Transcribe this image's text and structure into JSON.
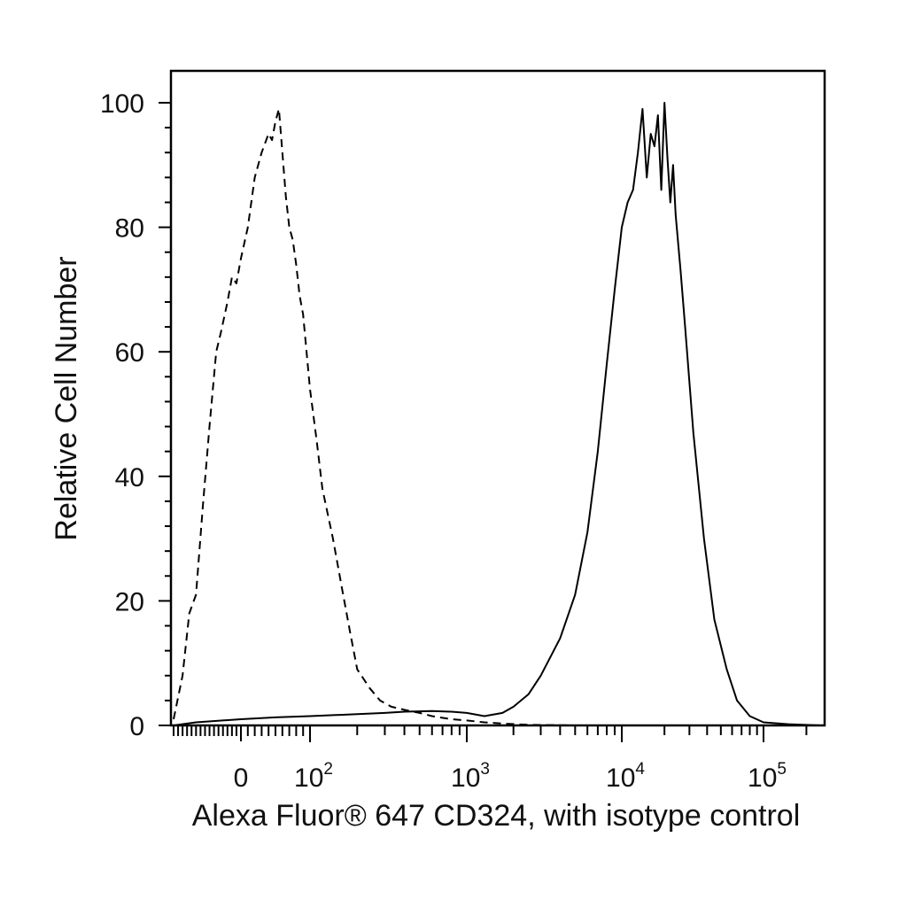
{
  "chart_data": {
    "type": "line",
    "xlabel": "Alexa Fluor® 647 CD324, with isotype control",
    "ylabel": "Relative Cell Number",
    "x_scale": "biexponential",
    "xlim": [
      -150,
      250000
    ],
    "ylim": [
      0,
      100
    ],
    "y_ticks": [
      "0",
      "20",
      "40",
      "60",
      "80",
      "100"
    ],
    "x_tick_labels": [
      {
        "value": 0,
        "base": "0",
        "exp": ""
      },
      {
        "value": 100,
        "base": "10",
        "exp": "2"
      },
      {
        "value": 1000,
        "base": "10",
        "exp": "3"
      },
      {
        "value": 10000,
        "base": "10",
        "exp": "4"
      },
      {
        "value": 100000,
        "base": "10",
        "exp": "5"
      }
    ],
    "series": [
      {
        "style": "dashed",
        "x": [
          -150,
          -130,
          -115,
          -100,
          -85,
          -70,
          -55,
          -45,
          -30,
          -20,
          -10,
          0,
          10,
          20,
          30,
          40,
          45,
          50,
          55,
          60,
          65,
          70,
          75,
          80,
          85,
          90,
          95,
          100,
          110,
          120,
          140,
          160,
          180,
          200,
          240,
          280,
          330,
          400,
          500,
          600,
          800,
          1000,
          1300,
          1700,
          2500,
          5000,
          10000,
          50000,
          250000
        ],
        "y": [
          1,
          8,
          18,
          21,
          35,
          48,
          60,
          63,
          68,
          72,
          71,
          75,
          80,
          88,
          92,
          95,
          94,
          97,
          99,
          92,
          85,
          80,
          78,
          74,
          69,
          66,
          60,
          54,
          46,
          38,
          30,
          22,
          15,
          9,
          6,
          4,
          3,
          2.5,
          2,
          1.5,
          1,
          0.8,
          0.5,
          0.3,
          0.1,
          0,
          0,
          0,
          0
        ]
      },
      {
        "style": "solid",
        "x": [
          -150,
          -100,
          0,
          50,
          100,
          200,
          300,
          400,
          600,
          800,
          1000,
          1300,
          1700,
          2000,
          2500,
          3000,
          4000,
          5000,
          6000,
          7000,
          8000,
          9000,
          10000,
          11000,
          12000,
          13000,
          14000,
          15000,
          16000,
          17000,
          18000,
          19000,
          20000,
          21000,
          22000,
          23000,
          24000,
          26000,
          28000,
          32000,
          38000,
          45000,
          55000,
          65000,
          80000,
          100000,
          150000,
          250000
        ],
        "y": [
          0,
          0.5,
          1,
          1.3,
          1.5,
          1.8,
          2,
          2.2,
          2.3,
          2.2,
          2,
          1.5,
          2,
          3,
          5,
          8,
          14,
          21,
          31,
          44,
          58,
          70,
          80,
          84,
          86,
          92,
          99,
          88,
          95,
          93,
          98,
          86,
          100,
          91,
          84,
          90,
          82,
          73,
          64,
          47,
          30,
          17,
          9,
          4,
          1.5,
          0.5,
          0.2,
          0
        ]
      }
    ]
  }
}
